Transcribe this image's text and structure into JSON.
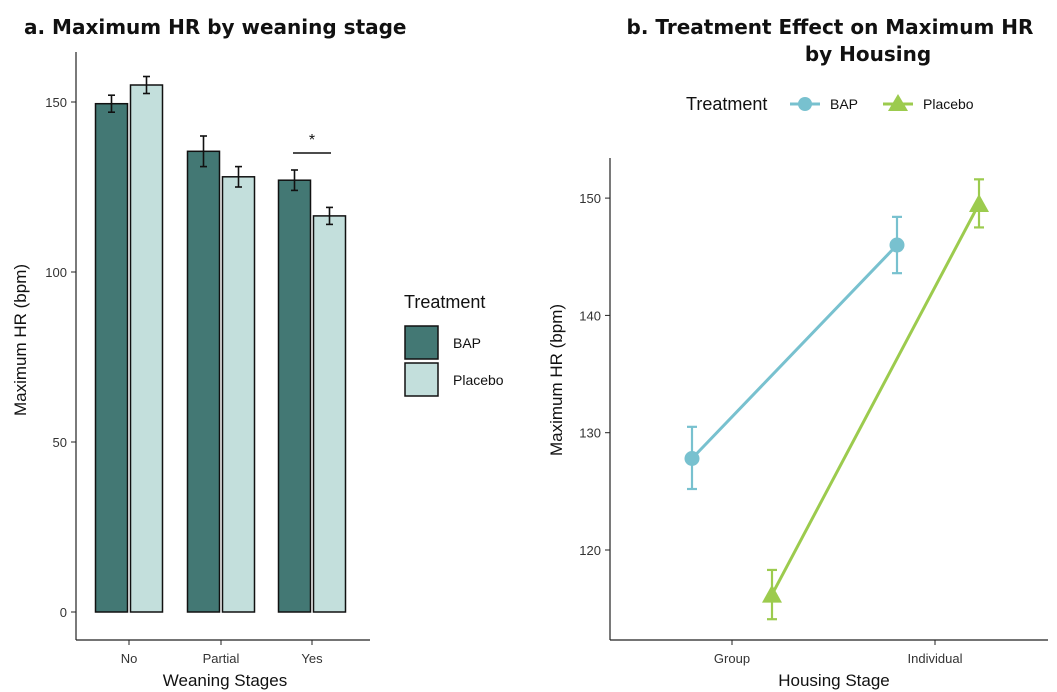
{
  "chart_data": [
    {
      "type": "bar",
      "title": "a. Maximum HR by weaning stage",
      "xlabel": "Weaning Stages",
      "ylabel": "Maximum HR (bpm)",
      "categories": [
        "No",
        "Partial",
        "Yes"
      ],
      "ylim": [
        0,
        160
      ],
      "yticks": [
        0,
        50,
        100,
        150
      ],
      "series": [
        {
          "name": "BAP",
          "values": [
            149.5,
            135.5,
            127
          ],
          "errors": [
            2.5,
            4.5,
            3
          ],
          "color": "#437874"
        },
        {
          "name": "Placebo",
          "values": [
            155,
            128,
            116.5
          ],
          "errors": [
            2.5,
            3,
            2.5
          ],
          "color": "#c3dfdc"
        }
      ],
      "legend": {
        "title": "Treatment",
        "position": "right"
      },
      "annotations": [
        {
          "text": "*",
          "category": "Yes"
        }
      ],
      "grid": false
    },
    {
      "type": "line",
      "title_line1": "b. Treatment Effect on Maximum HR",
      "title_line2": "by Housing",
      "xlabel": "Housing Stage",
      "ylabel": "Maximum HR (bpm)",
      "categories": [
        "Group",
        "Individual"
      ],
      "ylim": [
        112,
        153
      ],
      "yticks": [
        120,
        130,
        140,
        150
      ],
      "series": [
        {
          "name": "BAP",
          "values": [
            127.8,
            146
          ],
          "lower": [
            125.2,
            143.6
          ],
          "upper": [
            130.5,
            148.4
          ],
          "color": "#78c1cf",
          "marker": "circle"
        },
        {
          "name": "Placebo",
          "values": [
            116.2,
            149.5
          ],
          "lower": [
            114.1,
            147.5
          ],
          "upper": [
            118.3,
            151.6
          ],
          "color": "#9ccb4e",
          "marker": "triangle"
        }
      ],
      "legend": {
        "title": "Treatment",
        "position": "top"
      },
      "grid": false
    }
  ]
}
